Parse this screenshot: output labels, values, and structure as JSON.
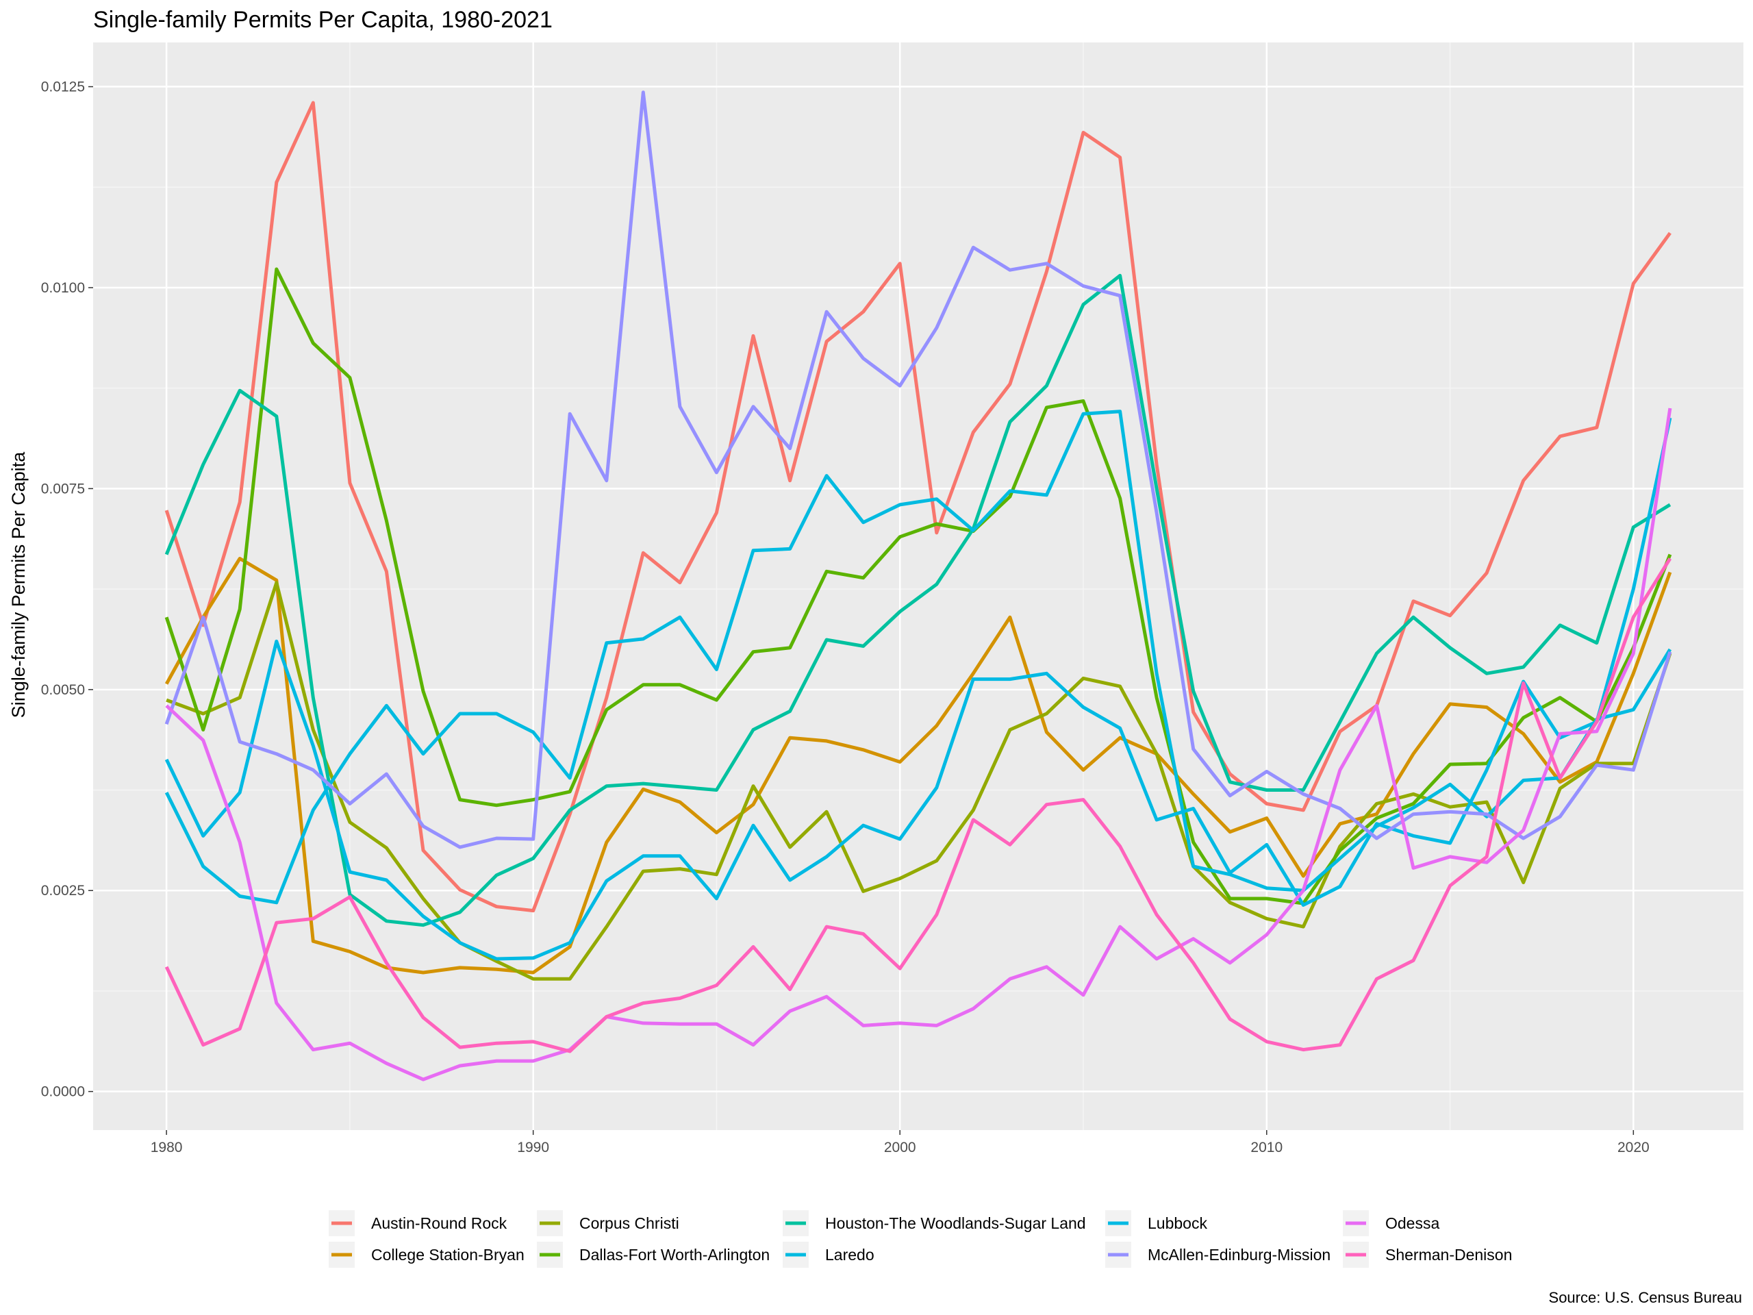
{
  "chart_data": {
    "type": "line",
    "title": "Single-family Permits Per Capita, 1980-2021",
    "xlabel": "",
    "ylabel": "Single-family Permits Per Capita",
    "caption": "Source: U.S. Census Bureau",
    "xlim": [
      1978,
      2023
    ],
    "ylim": [
      -0.00048,
      0.01305
    ],
    "x_ticks": [
      1980,
      1990,
      2000,
      2010,
      2020
    ],
    "x_tick_labels": [
      "1980",
      "1990",
      "2000",
      "2010",
      "2020"
    ],
    "y_ticks": [
      0,
      0.0025,
      0.005,
      0.0075,
      0.01,
      0.0125
    ],
    "y_tick_labels": [
      "0.0000",
      "0.0025",
      "0.0050",
      "0.0075",
      "0.0100",
      "0.0125"
    ],
    "grid": true,
    "legend_position": "bottom",
    "x": [
      1980,
      1981,
      1982,
      1983,
      1984,
      1985,
      1986,
      1987,
      1988,
      1989,
      1990,
      1991,
      1992,
      1993,
      1994,
      1995,
      1996,
      1997,
      1998,
      1999,
      2000,
      2001,
      2002,
      2003,
      2004,
      2005,
      2006,
      2007,
      2008,
      2009,
      2010,
      2011,
      2012,
      2013,
      2014,
      2015,
      2016,
      2017,
      2018,
      2019,
      2020,
      2021
    ],
    "series": [
      {
        "name": "Austin-Round Rock",
        "color": "#F8766D",
        "values": [
          0.00723,
          0.0058,
          0.00733,
          0.01131,
          0.0123,
          0.00757,
          0.00647,
          0.003,
          0.00251,
          0.0023,
          0.00225,
          0.00345,
          0.0049,
          0.0067,
          0.00633,
          0.0072,
          0.0094,
          0.0076,
          0.00933,
          0.0097,
          0.0103,
          0.00695,
          0.0082,
          0.0088,
          0.0102,
          0.01193,
          0.01162,
          0.0078,
          0.00472,
          0.00395,
          0.00358,
          0.0035,
          0.00448,
          0.0048,
          0.0061,
          0.00592,
          0.00645,
          0.0076,
          0.00815,
          0.00826,
          0.01005,
          0.01068
        ]
      },
      {
        "name": "College Station-Bryan",
        "color": "#D39200",
        "values": [
          0.00507,
          0.0059,
          0.00663,
          0.00636,
          0.00187,
          0.00174,
          0.00154,
          0.00148,
          0.00154,
          0.00152,
          0.00148,
          0.0018,
          0.0031,
          0.00376,
          0.0036,
          0.00322,
          0.00357,
          0.0044,
          0.00436,
          0.00425,
          0.0041,
          0.00455,
          0.0052,
          0.0059,
          0.00447,
          0.004,
          0.0044,
          0.0042,
          0.0037,
          0.00323,
          0.0034,
          0.00268,
          0.00333,
          0.00345,
          0.0042,
          0.00482,
          0.00478,
          0.00445,
          0.00385,
          0.0041,
          0.0052,
          0.00646
        ]
      },
      {
        "name": "Corpus Christi",
        "color": "#93AA00",
        "values": [
          0.00487,
          0.0047,
          0.0049,
          0.00633,
          0.0045,
          0.00335,
          0.00303,
          0.0024,
          0.00185,
          0.00162,
          0.0014,
          0.0014,
          0.00205,
          0.00274,
          0.00277,
          0.0027,
          0.0038,
          0.00304,
          0.00348,
          0.00249,
          0.00265,
          0.00287,
          0.0035,
          0.0045,
          0.0047,
          0.00514,
          0.00504,
          0.0042,
          0.0028,
          0.00235,
          0.00215,
          0.00205,
          0.00305,
          0.00358,
          0.0037,
          0.00354,
          0.0036,
          0.0026,
          0.00377,
          0.00408,
          0.00408,
          0.00545
        ]
      },
      {
        "name": "Dallas-Fort Worth-Arlington",
        "color": "#5BB300",
        "values": [
          0.0059,
          0.0045,
          0.006,
          0.01023,
          0.00931,
          0.00888,
          0.0071,
          0.00498,
          0.00363,
          0.00356,
          0.00363,
          0.00373,
          0.00475,
          0.00506,
          0.00506,
          0.00487,
          0.00547,
          0.00552,
          0.00647,
          0.00639,
          0.0069,
          0.00706,
          0.00697,
          0.0074,
          0.00851,
          0.00859,
          0.00738,
          0.0049,
          0.0031,
          0.0024,
          0.0024,
          0.00234,
          0.003,
          0.0034,
          0.00358,
          0.00407,
          0.00408,
          0.00465,
          0.0049,
          0.0046,
          0.00552,
          0.00668
        ]
      },
      {
        "name": "Houston-The Woodlands-Sugar Land",
        "color": "#00C19F",
        "values": [
          0.00668,
          0.0078,
          0.00872,
          0.0084,
          0.0049,
          0.00245,
          0.00212,
          0.00207,
          0.00223,
          0.00269,
          0.0029,
          0.0035,
          0.0038,
          0.00383,
          0.00379,
          0.00375,
          0.0045,
          0.00473,
          0.00562,
          0.00554,
          0.00597,
          0.00631,
          0.007,
          0.00833,
          0.00878,
          0.00979,
          0.01015,
          0.0075,
          0.00498,
          0.00385,
          0.00375,
          0.00375,
          0.0046,
          0.00545,
          0.0059,
          0.00552,
          0.0052,
          0.00528,
          0.0058,
          0.00558,
          0.00702,
          0.0073
        ]
      },
      {
        "name": "Laredo",
        "color": "#00BAE0",
        "values": [
          0.00372,
          0.0028,
          0.00243,
          0.00235,
          0.0035,
          0.0042,
          0.0048,
          0.0042,
          0.0047,
          0.0047,
          0.00447,
          0.0039,
          0.00558,
          0.00563,
          0.0059,
          0.00525,
          0.00673,
          0.00675,
          0.00766,
          0.00708,
          0.0073,
          0.00737,
          0.00698,
          0.00747,
          0.00742,
          0.00843,
          0.00846,
          0.0052,
          0.0028,
          0.0027,
          0.00253,
          0.0025,
          0.0029,
          0.0033,
          0.00353,
          0.00382,
          0.00342,
          0.00387,
          0.0039,
          0.00463,
          0.00475,
          0.0055
        ]
      },
      {
        "name": "Lubbock",
        "color": "#00B9E3",
        "values": [
          0.00413,
          0.00318,
          0.00372,
          0.0056,
          0.0043,
          0.00273,
          0.00263,
          0.00218,
          0.00185,
          0.00165,
          0.00166,
          0.00185,
          0.00262,
          0.00293,
          0.00293,
          0.0024,
          0.00331,
          0.00263,
          0.00292,
          0.00331,
          0.00314,
          0.00378,
          0.00513,
          0.00513,
          0.0052,
          0.00478,
          0.00452,
          0.00338,
          0.00352,
          0.00272,
          0.00307,
          0.00232,
          0.00255,
          0.00333,
          0.00318,
          0.00309,
          0.004,
          0.0051,
          0.0044,
          0.0046,
          0.00625,
          0.00838
        ]
      },
      {
        "name": "McAllen-Edinburg-Mission",
        "color": "#9590FF",
        "values": [
          0.00457,
          0.0059,
          0.00435,
          0.0042,
          0.004,
          0.00358,
          0.00395,
          0.0033,
          0.00304,
          0.00315,
          0.00314,
          0.00843,
          0.0076,
          0.01243,
          0.00852,
          0.0077,
          0.00852,
          0.008,
          0.0097,
          0.00912,
          0.00878,
          0.0095,
          0.0105,
          0.01022,
          0.0103,
          0.01002,
          0.0099,
          0.0072,
          0.00426,
          0.00368,
          0.00398,
          0.0037,
          0.00352,
          0.00315,
          0.00345,
          0.00348,
          0.00345,
          0.00315,
          0.00342,
          0.00406,
          0.004,
          0.00547
        ]
      },
      {
        "name": "Odessa",
        "color": "#E76BF3",
        "values": [
          0.0048,
          0.00437,
          0.0031,
          0.0011,
          0.00052,
          0.0006,
          0.00035,
          0.00015,
          0.00032,
          0.00038,
          0.00038,
          0.00052,
          0.00093,
          0.00085,
          0.00084,
          0.00084,
          0.00058,
          0.001,
          0.00118,
          0.00082,
          0.00085,
          0.00082,
          0.00103,
          0.0014,
          0.00155,
          0.0012,
          0.00205,
          0.00165,
          0.0019,
          0.0016,
          0.00195,
          0.0025,
          0.004,
          0.0048,
          0.00278,
          0.00292,
          0.00285,
          0.00325,
          0.00445,
          0.00448,
          0.00545,
          0.0085
        ]
      },
      {
        "name": "Sherman-Denison",
        "color": "#FF62BC",
        "values": [
          0.00155,
          0.00058,
          0.00078,
          0.0021,
          0.00215,
          0.00242,
          0.0016,
          0.00092,
          0.00055,
          0.0006,
          0.00062,
          0.0005,
          0.00093,
          0.0011,
          0.00116,
          0.00132,
          0.0018,
          0.00127,
          0.00205,
          0.00196,
          0.00153,
          0.0022,
          0.00338,
          0.00307,
          0.00357,
          0.00363,
          0.00305,
          0.0022,
          0.0016,
          0.0009,
          0.00062,
          0.00052,
          0.00058,
          0.0014,
          0.00163,
          0.00256,
          0.00292,
          0.00508,
          0.0039,
          0.0046,
          0.0059,
          0.00663
        ]
      }
    ]
  }
}
